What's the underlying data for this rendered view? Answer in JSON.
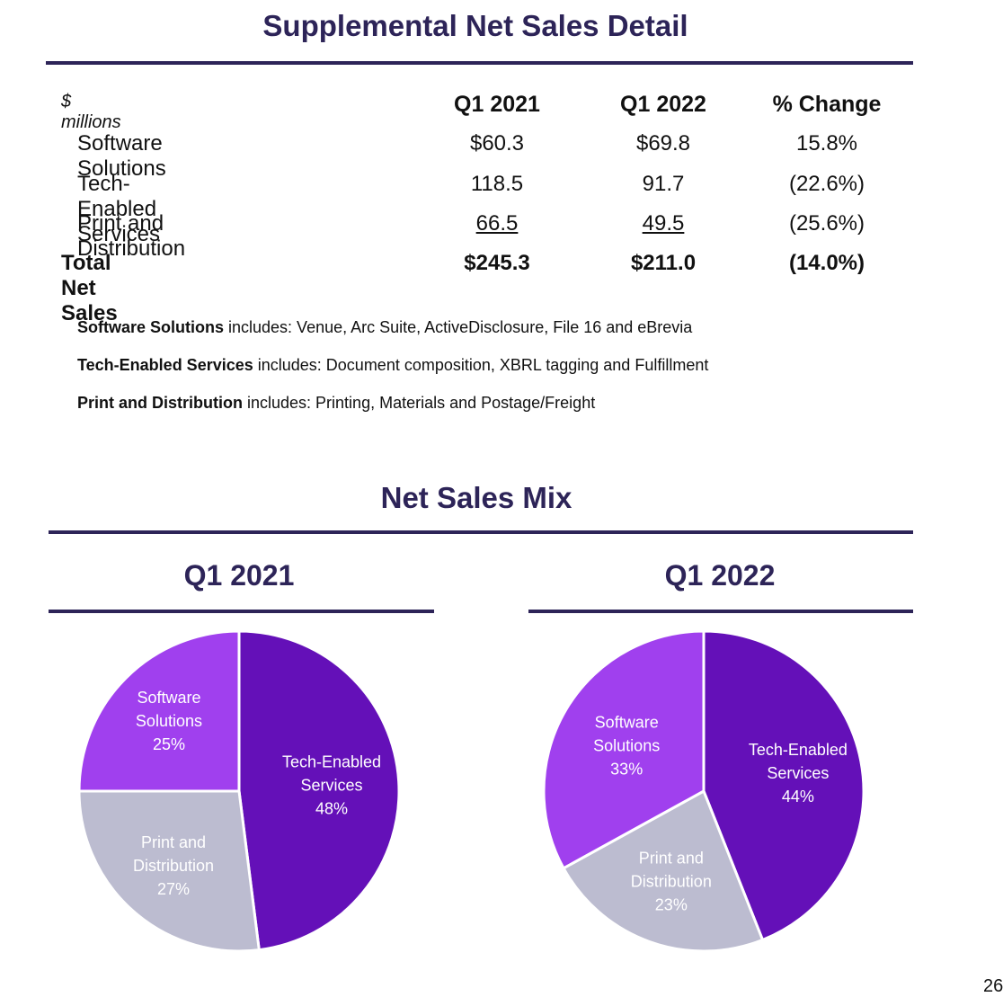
{
  "page": {
    "title": "Supplemental Net Sales Detail",
    "page_number": "26"
  },
  "table": {
    "unit_label": "$ millions",
    "columns": [
      "Q1 2021",
      "Q1 2022",
      "% Change"
    ],
    "rows": [
      {
        "label": "Software Solutions",
        "q1_2021": "$60.3",
        "q1_2022": "$69.8",
        "change": "15.8%"
      },
      {
        "label": "Tech-Enabled Services",
        "q1_2021": "118.5",
        "q1_2022": "91.7",
        "change": "(22.6%)"
      },
      {
        "label": "Print and Distribution",
        "q1_2021": "66.5",
        "q1_2022": "49.5",
        "change": "(25.6%)"
      }
    ],
    "total": {
      "label": "Total Net Sales",
      "q1_2021": "$245.3",
      "q1_2022": "$211.0",
      "change": "(14.0%)"
    }
  },
  "notes": [
    {
      "bold": "Software Solutions",
      "text": " includes: Venue, Arc Suite, ActiveDisclosure, File 16 and eBrevia"
    },
    {
      "bold": "Tech-Enabled Services",
      "text": " includes: Document composition, XBRL tagging and Fulfillment"
    },
    {
      "bold": "Print and Distribution",
      "text": " includes: Printing, Materials and Postage/Freight"
    }
  ],
  "colors": {
    "software": "#a040ee",
    "tech": "#6410b8",
    "print": "#bcbcd0",
    "accent": "#2d2458"
  },
  "chart_data": [
    {
      "type": "pie",
      "section_title": "Net Sales Mix",
      "title": "Q1 2021",
      "slices": [
        {
          "name": "Tech-Enabled Services",
          "label_lines": [
            "Tech-Enabled",
            "Services"
          ],
          "value": 48,
          "pct_label": "48%",
          "color_key": "tech"
        },
        {
          "name": "Print and Distribution",
          "label_lines": [
            "Print and",
            "Distribution"
          ],
          "value": 27,
          "pct_label": "27%",
          "color_key": "print"
        },
        {
          "name": "Software Solutions",
          "label_lines": [
            "Software",
            "Solutions"
          ],
          "value": 25,
          "pct_label": "25%",
          "color_key": "software"
        }
      ]
    },
    {
      "type": "pie",
      "section_title": "Net Sales Mix",
      "title": "Q1 2022",
      "slices": [
        {
          "name": "Tech-Enabled Services",
          "label_lines": [
            "Tech-Enabled",
            "Services"
          ],
          "value": 44,
          "pct_label": "44%",
          "color_key": "tech"
        },
        {
          "name": "Print and Distribution",
          "label_lines": [
            "Print and",
            "Distribution"
          ],
          "value": 23,
          "pct_label": "23%",
          "color_key": "print"
        },
        {
          "name": "Software Solutions",
          "label_lines": [
            "Software",
            "Solutions"
          ],
          "value": 33,
          "pct_label": "33%",
          "color_key": "software"
        }
      ]
    }
  ]
}
